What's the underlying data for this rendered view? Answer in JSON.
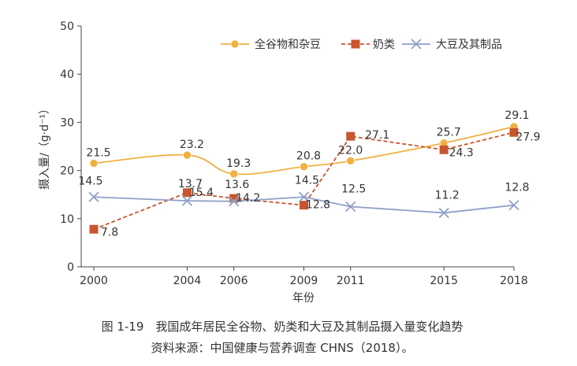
{
  "chart_data": {
    "type": "line",
    "x": [
      "2000",
      "2004",
      "2006",
      "2009",
      "2011",
      "2015",
      "2018"
    ],
    "xlabel": "年份",
    "ylabel": "摄入量/（g·d⁻¹）",
    "ylim": [
      0,
      50
    ],
    "yticks": [
      "0",
      "10",
      "20",
      "30",
      "40",
      "50"
    ],
    "grid": false,
    "legend_position": "top-right",
    "series": [
      {
        "name": "全谷物和杂豆",
        "values": [
          21.5,
          23.2,
          19.3,
          20.8,
          22.0,
          25.7,
          29.1
        ],
        "labels": [
          "21.5",
          "23.2",
          "19.3",
          "20.8",
          "22.0",
          "25.7",
          "29.1"
        ],
        "color": "#f0b140",
        "marker": "circle",
        "style": "solid-curved"
      },
      {
        "name": "奶类",
        "values": [
          7.8,
          15.4,
          14.2,
          12.8,
          27.1,
          24.3,
          27.9
        ],
        "labels": [
          "7.8",
          "15.4",
          "14.2",
          "12.8",
          "27.1",
          "24.3",
          "27.9"
        ],
        "color": "#c8562e",
        "marker": "square",
        "style": "dashed"
      },
      {
        "name": "大豆及其制品",
        "values": [
          14.5,
          13.7,
          13.6,
          14.5,
          12.5,
          11.2,
          12.8
        ],
        "labels": [
          "14.5",
          "13.7",
          "13.6",
          "14.5",
          "12.5",
          "11.2",
          "12.8"
        ],
        "color": "#8fa0c8",
        "marker": "x",
        "style": "solid"
      }
    ]
  },
  "caption": {
    "line1": "图 1-19　我国成年居民全谷物、奶类和大豆及其制品摄入量变化趋势",
    "line2": "资料来源：中国健康与营养调查 CHNS（2018）。"
  }
}
